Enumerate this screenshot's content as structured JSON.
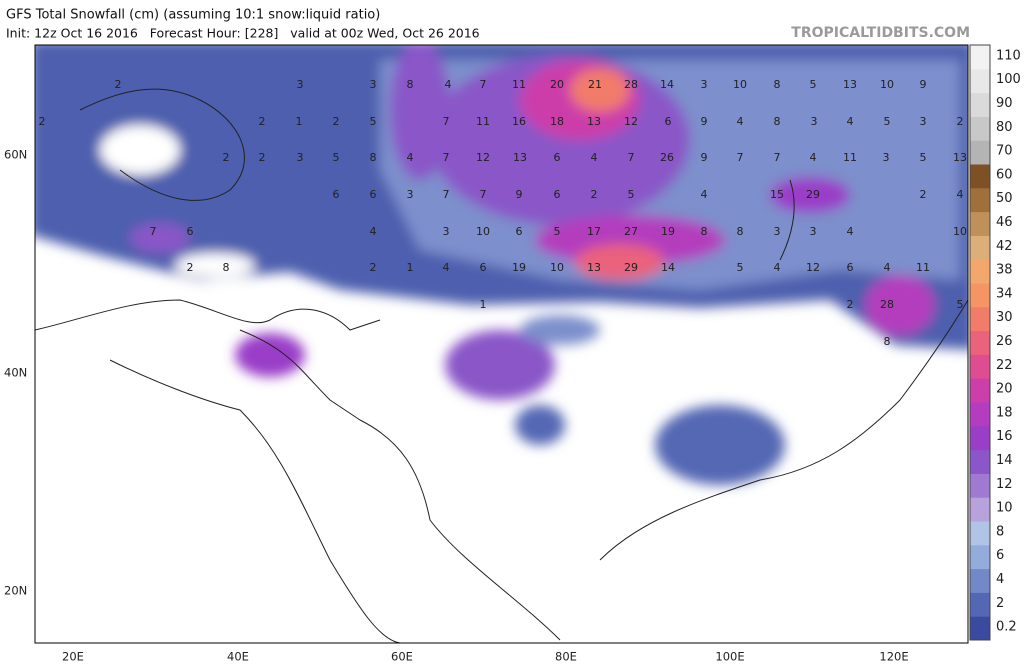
{
  "header": {
    "title": "GFS Total Snowfall (cm) (assuming 10:1 snow:liquid ratio)",
    "subtitle": "Init: 12z Oct 16 2016   Forecast Hour: [228]   valid at 00z Wed, Oct 26 2016",
    "brand": "TROPICALTIDBITS.COM"
  },
  "lat_labels": [
    "60N",
    "40N",
    "20N"
  ],
  "lon_labels": [
    "20E",
    "40E",
    "60E",
    "80E",
    "100E",
    "120E"
  ],
  "colorbar": {
    "labels": [
      0.2,
      2,
      4,
      6,
      8,
      10,
      12,
      14,
      16,
      18,
      20,
      22,
      26,
      30,
      34,
      38,
      42,
      46,
      50,
      60,
      70,
      80,
      90,
      100,
      110
    ],
    "colors": [
      "#3a4a9e",
      "#5467b4",
      "#7288c8",
      "#94acdc",
      "#b0c4e6",
      "#b8a2dc",
      "#a07ad2",
      "#8a56c8",
      "#9a3ec8",
      "#b43cbe",
      "#cc3eaa",
      "#de4c92",
      "#ea627c",
      "#f27c6a",
      "#f59464",
      "#f2a86c",
      "#dcae7a",
      "#c0905a",
      "#a0703c",
      "#7e5026",
      "#b4b4b4",
      "#c8c8c8",
      "#dadada",
      "#e8e8e8",
      "#f2f2f2"
    ]
  },
  "map_labels": [
    2,
    3,
    3,
    8,
    4,
    7,
    11,
    20,
    21,
    28,
    14,
    3,
    10,
    8,
    5,
    13,
    10,
    9,
    2,
    2,
    1,
    2,
    5,
    7,
    11,
    16,
    18,
    13,
    12,
    6,
    9,
    4,
    8,
    3,
    4,
    5,
    3,
    2,
    2,
    2,
    3,
    5,
    8,
    4,
    7,
    12,
    13,
    6,
    4,
    7,
    26,
    9,
    7,
    7,
    4,
    11,
    3,
    5,
    13,
    6,
    6,
    3,
    7,
    7,
    9,
    6,
    2,
    5,
    4,
    15,
    29,
    2,
    4,
    7,
    6,
    4,
    3,
    10,
    6,
    5,
    17,
    27,
    19,
    8,
    8,
    3,
    3,
    4,
    10,
    2,
    8,
    2,
    1,
    4,
    6,
    19,
    10,
    13,
    29,
    14,
    5,
    4,
    12,
    6,
    4,
    11,
    1,
    2,
    28,
    5,
    8
  ]
}
